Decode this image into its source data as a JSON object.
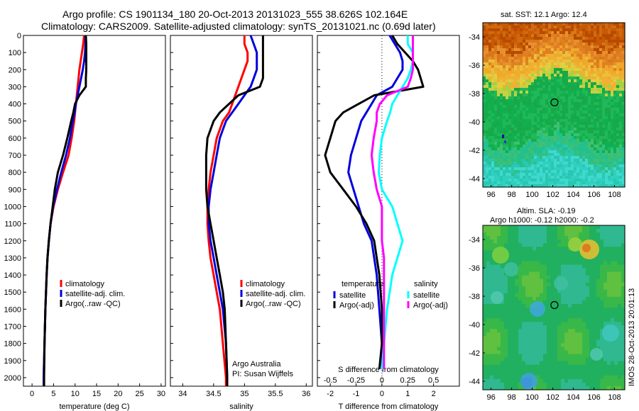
{
  "header": {
    "line1": "Argo profile: CS 1901134_180 20-Oct-2013 20131023_555 38.626S 102.164E",
    "line2": "Climatology: CARS2009. Satellite-adjusted climatology: synTS_20131021.nc (0.69d later)"
  },
  "colors": {
    "climatology": "#ff0000",
    "satellite": "#0000dd",
    "argo": "#000000",
    "sal_satellite": "#00ffff",
    "sal_argo": "#ff00ff"
  },
  "chart_data": [
    {
      "type": "line",
      "xlabel": "temperature (deg C)",
      "xlim": [
        -2,
        31
      ],
      "xticks": [
        0,
        5,
        10,
        15,
        20,
        25,
        30
      ],
      "ylim": [
        0,
        2050
      ],
      "yticks": [
        0,
        100,
        200,
        300,
        400,
        500,
        600,
        700,
        800,
        900,
        1000,
        1100,
        1200,
        1300,
        1400,
        1500,
        1600,
        1700,
        1800,
        1900,
        2000
      ],
      "legend": [
        "climatology",
        "satellite-adj. clim.",
        "Argo(..raw -QC)"
      ],
      "depth": [
        0,
        50,
        100,
        150,
        200,
        250,
        300,
        350,
        400,
        450,
        500,
        600,
        700,
        800,
        900,
        1000,
        1100,
        1200,
        1300,
        1400,
        1600,
        1800,
        2000,
        2050
      ],
      "series": [
        {
          "name": "climatology",
          "values": [
            12.1,
            11.9,
            11.6,
            11.3,
            11.0,
            10.8,
            10.6,
            10.4,
            10.2,
            10.0,
            9.8,
            9.2,
            8.5,
            7.2,
            6.0,
            5.0,
            4.3,
            3.9,
            3.6,
            3.4,
            3.1,
            2.9,
            2.7,
            2.7
          ]
        },
        {
          "name": "satellite-adj. clim.",
          "values": [
            12.4,
            12.4,
            12.3,
            12.1,
            11.8,
            11.4,
            11.0,
            10.6,
            10.2,
            9.9,
            9.5,
            8.8,
            7.9,
            6.8,
            5.8,
            4.9,
            4.3,
            3.9,
            3.6,
            3.4,
            3.1,
            2.9,
            2.7,
            2.7
          ]
        },
        {
          "name": "Argo(..raw -QC)",
          "values": [
            12.5,
            12.6,
            12.6,
            12.6,
            12.6,
            12.5,
            12.5,
            11.0,
            10.0,
            9.6,
            9.1,
            8.2,
            7.2,
            6.0,
            5.3,
            4.8,
            4.3,
            3.9,
            3.6,
            3.4,
            3.1,
            2.9,
            2.8,
            2.8
          ]
        }
      ],
      "annotations": []
    },
    {
      "type": "line",
      "xlabel": "salinity",
      "xlim": [
        33.8,
        36.1
      ],
      "xticks": [
        34,
        34.5,
        35,
        35.5,
        36
      ],
      "xticklabels": [
        "34",
        "34.5",
        "35",
        "35.5",
        "36"
      ],
      "ylim": [
        0,
        2050
      ],
      "legend": [
        "climatology",
        "satellite-adj. clim.",
        "Argo(..raw -QC)"
      ],
      "depth": [
        0,
        50,
        100,
        150,
        200,
        250,
        300,
        350,
        400,
        450,
        500,
        600,
        700,
        800,
        900,
        1000,
        1100,
        1200,
        1300,
        1400,
        1500,
        1600,
        1800,
        2000,
        2050
      ],
      "series": [
        {
          "name": "climatology",
          "values": [
            35.0,
            35.0,
            35.05,
            35.05,
            35.0,
            34.95,
            34.9,
            34.85,
            34.8,
            34.75,
            34.65,
            34.55,
            34.5,
            34.45,
            34.42,
            34.4,
            34.4,
            34.42,
            34.45,
            34.5,
            34.55,
            34.6,
            34.65,
            34.7,
            34.7
          ]
        },
        {
          "name": "satellite-adj. clim.",
          "values": [
            35.1,
            35.15,
            35.2,
            35.2,
            35.2,
            35.15,
            35.1,
            35.0,
            34.9,
            34.8,
            34.7,
            34.6,
            34.55,
            34.5,
            34.45,
            34.42,
            34.42,
            34.45,
            34.5,
            34.55,
            34.6,
            34.65,
            34.7,
            34.72,
            34.72
          ]
        },
        {
          "name": "Argo(..raw -QC)",
          "values": [
            35.3,
            35.3,
            35.3,
            35.3,
            35.3,
            35.3,
            35.25,
            34.9,
            34.75,
            34.6,
            34.5,
            34.4,
            34.38,
            34.38,
            34.38,
            34.4,
            34.45,
            34.5,
            34.55,
            34.6,
            34.65,
            34.68,
            34.7,
            34.72,
            34.72
          ]
        }
      ],
      "annotations": [
        "Argo Australia",
        "PI: Susan Wijffels"
      ]
    },
    {
      "type": "line",
      "xlabel": "T difference from climatology",
      "xlim": [
        -2.5,
        3
      ],
      "xticks": [
        -2,
        -1,
        0,
        1,
        2
      ],
      "top_axis_label": "S difference from climatology",
      "top_axis_ticks": [
        "-0.5",
        "-0.25",
        "0",
        "0.25",
        "0.5"
      ],
      "ylim": [
        0,
        2050
      ],
      "legend_titles": [
        "temperature",
        "salinity"
      ],
      "legend": [
        "satellite",
        "Argo(-adj)",
        "satellite",
        "Argo(-adj)"
      ],
      "depth": [
        0,
        50,
        100,
        150,
        200,
        250,
        300,
        350,
        400,
        450,
        500,
        600,
        700,
        800,
        900,
        1000,
        1100,
        1200,
        1300,
        1400,
        1600,
        1800,
        1950
      ],
      "series": [
        {
          "name": "T satellite",
          "values": [
            0.3,
            0.5,
            0.7,
            0.8,
            0.8,
            0.6,
            0.4,
            -0.2,
            -0.4,
            -0.6,
            -0.8,
            -1.0,
            -1.2,
            -1.3,
            -1.1,
            -0.9,
            -0.7,
            -0.4,
            -0.3,
            -0.2,
            -0.1,
            0,
            0
          ]
        },
        {
          "name": "T Argo(-adj)",
          "values": [
            0.4,
            0.6,
            0.9,
            1.2,
            1.4,
            1.5,
            1.6,
            -0.3,
            -0.9,
            -1.5,
            -1.8,
            -2.0,
            -2.2,
            -2.0,
            -1.5,
            -1.0,
            -0.6,
            -0.3,
            -0.2,
            -0.1,
            0,
            0,
            -0.1
          ]
        },
        {
          "name": "S satellite",
          "values": [
            0.25,
            0.25,
            0.3,
            0.3,
            0.28,
            0.25,
            0.2,
            0.15,
            0.1,
            0.08,
            0.05,
            0.0,
            -0.02,
            -0.03,
            0.0,
            0.1,
            0.15,
            0.2,
            0.15,
            0.1,
            0.05,
            0.02,
            0.0
          ]
        },
        {
          "name": "S Argo(-adj)",
          "values": [
            0.3,
            0.3,
            0.3,
            0.3,
            0.3,
            0.28,
            0.25,
            0.05,
            -0.02,
            -0.05,
            -0.05,
            -0.08,
            -0.1,
            -0.08,
            -0.05,
            0.0,
            0.0,
            0.0,
            0.02,
            0.02,
            0.02,
            0.02,
            0.02
          ]
        }
      ],
      "annotations": []
    },
    {
      "type": "heatmap",
      "title": "sat. SST: 12.1  Argo: 12.4",
      "xticks": [
        "96",
        "98",
        "100",
        "102",
        "104",
        "106",
        "108"
      ],
      "yticks": [
        "-34",
        "-36",
        "-38",
        "-40",
        "-42",
        "-44"
      ],
      "marker": {
        "lon": 102.164,
        "lat": -38.626
      }
    },
    {
      "type": "heatmap",
      "title_line1": "Altim. SLA: -0.19",
      "title_line2": "Argo h1000: -0.12  h2000: -0.2",
      "xticks": [
        "96",
        "98",
        "100",
        "102",
        "104",
        "106",
        "108"
      ],
      "yticks": [
        "-34",
        "-36",
        "-38",
        "-40",
        "-42",
        "-44"
      ],
      "marker": {
        "lon": 102.164,
        "lat": -38.626
      },
      "side_label": "IMOS 28-Oct-2013 20:01:13"
    }
  ]
}
